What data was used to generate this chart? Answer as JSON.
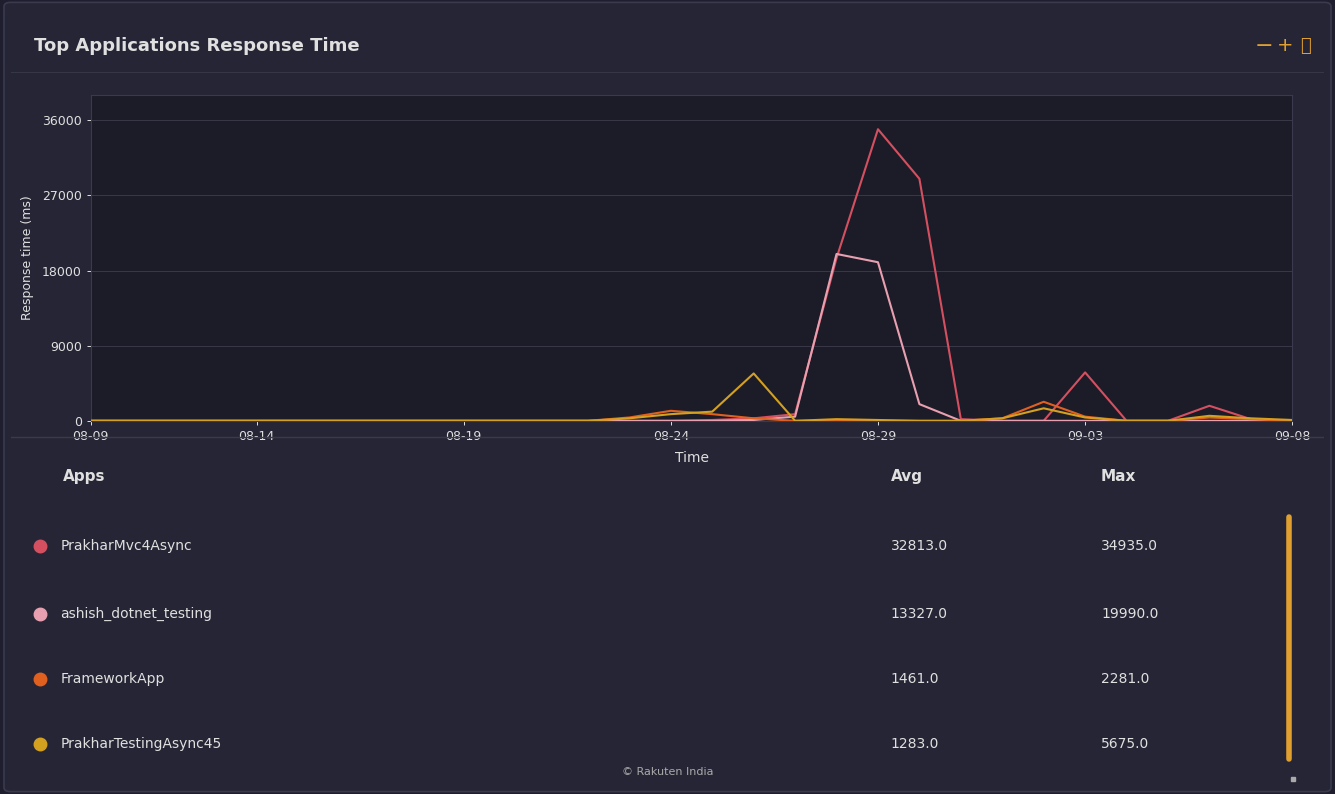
{
  "title": "Top Applications Response Time",
  "bg_color": "#1e1e2e",
  "panel_bg": "#252535",
  "plot_bg": "#1c1c28",
  "xlabel": "Time",
  "ylabel": "Response time (ms)",
  "yticks": [
    0,
    9000,
    18000,
    27000,
    36000
  ],
  "xtick_labels": [
    "08-09",
    "08-14",
    "08-19",
    "08-24",
    "08-29",
    "09-03",
    "09-08"
  ],
  "grid_color": "#383848",
  "text_color": "#e0e0e0",
  "dim_color": "#aaaaaa",
  "series": [
    {
      "name": "PrakharMvc4Async",
      "color": "#d45060",
      "avg": "32813.0",
      "max": "34935.0",
      "x": [
        0,
        1,
        2,
        3,
        4,
        5,
        6,
        7,
        8,
        9,
        10,
        11,
        12,
        13,
        14,
        15,
        16,
        17,
        18,
        19,
        20,
        21,
        22,
        23,
        24,
        25,
        26,
        27,
        28,
        29
      ],
      "y": [
        0,
        0,
        0,
        0,
        0,
        0,
        0,
        0,
        0,
        0,
        0,
        0,
        0,
        0,
        0,
        100,
        300,
        800,
        19500,
        34935,
        29000,
        200,
        0,
        0,
        5800,
        0,
        0,
        1800,
        200,
        0
      ]
    },
    {
      "name": "ashish_dotnet_testing",
      "color": "#e8a0b0",
      "avg": "13327.0",
      "max": "19990.0",
      "x": [
        0,
        1,
        2,
        3,
        4,
        5,
        6,
        7,
        8,
        9,
        10,
        11,
        12,
        13,
        14,
        15,
        16,
        17,
        18,
        19,
        20,
        21,
        22,
        23,
        24,
        25,
        26,
        27,
        28,
        29
      ],
      "y": [
        0,
        0,
        0,
        0,
        0,
        0,
        0,
        0,
        0,
        0,
        0,
        0,
        0,
        0,
        0,
        0,
        100,
        500,
        19990,
        19000,
        2000,
        0,
        0,
        0,
        0,
        0,
        0,
        0,
        0,
        0
      ]
    },
    {
      "name": "FrameworkApp",
      "color": "#e06020",
      "avg": "1461.0",
      "max": "2281.0",
      "x": [
        0,
        1,
        2,
        3,
        4,
        5,
        6,
        7,
        8,
        9,
        10,
        11,
        12,
        13,
        14,
        15,
        16,
        17,
        18,
        19,
        20,
        21,
        22,
        23,
        24,
        25,
        26,
        27,
        28,
        29
      ],
      "y": [
        0,
        0,
        0,
        0,
        0,
        0,
        0,
        0,
        0,
        0,
        0,
        0,
        0,
        400,
        1200,
        800,
        300,
        0,
        0,
        0,
        0,
        0,
        300,
        2281,
        500,
        0,
        0,
        400,
        200,
        0
      ]
    },
    {
      "name": "PrakharTestingAsync45",
      "color": "#d4a020",
      "avg": "1283.0",
      "max": "5675.0",
      "x": [
        0,
        1,
        2,
        3,
        4,
        5,
        6,
        7,
        8,
        9,
        10,
        11,
        12,
        13,
        14,
        15,
        16,
        17,
        18,
        19,
        20,
        21,
        22,
        23,
        24,
        25,
        26,
        27,
        28,
        29
      ],
      "y": [
        0,
        0,
        0,
        0,
        0,
        0,
        0,
        0,
        0,
        0,
        0,
        0,
        0,
        300,
        800,
        1100,
        5675,
        0,
        200,
        100,
        0,
        0,
        300,
        1500,
        400,
        0,
        0,
        600,
        300,
        100
      ]
    }
  ],
  "legend_items": [
    {
      "name": "PrakharMvc4Async",
      "color": "#d45060",
      "avg": "32813.0",
      "max": "34935.0"
    },
    {
      "name": "ashish_dotnet_testing",
      "color": "#e8a0b0",
      "avg": "13327.0",
      "max": "19990.0"
    },
    {
      "name": "FrameworkApp",
      "color": "#e06020",
      "avg": "1461.0",
      "max": "2281.0"
    },
    {
      "name": "PrakharTestingAsync45",
      "color": "#d4a020",
      "avg": "1283.0",
      "max": "5675.0"
    }
  ],
  "scrollbar_color": "#e0a030",
  "copyright": "© Rakuten India",
  "ylim": [
    0,
    39000
  ],
  "xlim": [
    0,
    29
  ],
  "x_tick_positions": [
    0,
    4,
    9,
    14,
    19,
    24,
    29
  ]
}
